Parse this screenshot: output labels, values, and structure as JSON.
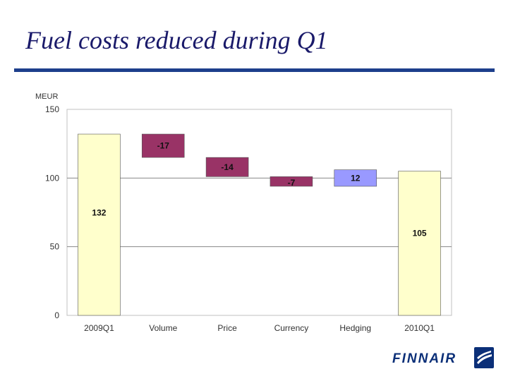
{
  "title": "Fuel costs reduced during Q1",
  "brand": {
    "name": "FINNAIR",
    "color": "#0b2f78",
    "icon": "finnair-logo-icon"
  },
  "chart_data": {
    "type": "bar",
    "subtype": "waterfall",
    "unit_label": "MEUR",
    "categories": [
      "2009Q1",
      "Volume",
      "Price",
      "Currency",
      "Hedging",
      "2010Q1"
    ],
    "bars": [
      {
        "category": "2009Q1",
        "kind": "total",
        "start": 0,
        "end": 132,
        "label": "132",
        "color": "#ffffcc"
      },
      {
        "category": "Volume",
        "kind": "delta",
        "start": 132,
        "end": 115,
        "label": "-17",
        "color": "#993366"
      },
      {
        "category": "Price",
        "kind": "delta",
        "start": 115,
        "end": 101,
        "label": "-14",
        "color": "#993366"
      },
      {
        "category": "Currency",
        "kind": "delta",
        "start": 101,
        "end": 94,
        "label": "-7",
        "color": "#993366"
      },
      {
        "category": "Hedging",
        "kind": "delta",
        "start": 94,
        "end": 106,
        "label": "12",
        "color": "#9999ff"
      },
      {
        "category": "2010Q1",
        "kind": "total",
        "start": 0,
        "end": 105,
        "label": "105",
        "color": "#ffffcc"
      }
    ],
    "yticks": [
      "0",
      "50",
      "100",
      "150"
    ],
    "ylim": [
      0,
      150
    ],
    "grid": true,
    "legend": "none"
  }
}
